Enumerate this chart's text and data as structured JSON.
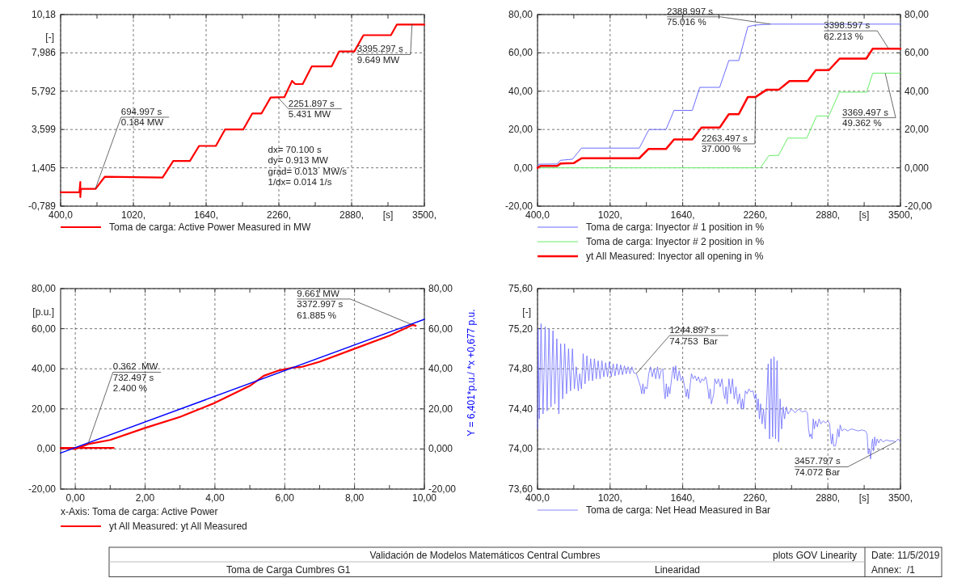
{
  "chart_data": [
    {
      "type": "line",
      "xlabel": "[s]",
      "ylabel": "[-]",
      "xlim": [
        400,
        3500
      ],
      "ylim": [
        -0.789,
        10.18
      ],
      "xticks": [
        {
          "value": 400,
          "label": "400,0"
        },
        {
          "value": 710,
          "label": null
        },
        {
          "value": 1020,
          "label": "1020,"
        },
        {
          "value": 1330,
          "label": null
        },
        {
          "value": 1640,
          "label": "1640,"
        },
        {
          "value": 1950,
          "label": null
        },
        {
          "value": 2260,
          "label": "2260,"
        },
        {
          "value": 2570,
          "label": null
        },
        {
          "value": 2880,
          "label": "2880,"
        },
        {
          "value": 3190,
          "label": null
        },
        {
          "value": 3500,
          "label": "3500,"
        }
      ],
      "yticks": [
        {
          "value": -0.789,
          "label": "-0,789"
        },
        {
          "value": 1.405,
          "label": "1,405"
        },
        {
          "value": 3.599,
          "label": "3,599"
        },
        {
          "value": 5.792,
          "label": "5,792"
        },
        {
          "value": 7.986,
          "label": "7,986"
        },
        {
          "value": 10.18,
          "label": "10,18"
        }
      ],
      "grid": true,
      "legend": "bottom",
      "series": [
        {
          "name": "Toma de carga: Active Power Measured in MW",
          "color": "#ff0000",
          "x": [
            400,
            560,
            568,
            568,
            572,
            580,
            698,
            776,
            1269,
            1360,
            1502,
            1580,
            1723,
            1801,
            1956,
            2034,
            2112,
            2190,
            2307,
            2372,
            2400,
            2463,
            2540,
            2709,
            2774,
            2903,
            2981,
            3215,
            3266,
            3500
          ],
          "values": [
            0.0,
            0.0,
            0.6,
            -0.27,
            0.15,
            0.2,
            0.2,
            0.89,
            0.85,
            1.8,
            1.8,
            2.66,
            2.66,
            3.6,
            3.6,
            4.52,
            4.52,
            5.43,
            5.45,
            6.38,
            6.2,
            6.2,
            7.21,
            7.21,
            8.07,
            8.07,
            9.0,
            9.0,
            9.61,
            9.61
          ]
        }
      ],
      "annotations": [
        {
          "text": "694.997 s\n0.184 MW",
          "x": 694.997,
          "y": 0.184
        },
        {
          "text": "2251.897 s\n5.431 MW",
          "x": 2251.897,
          "y": 5.431
        },
        {
          "text": "3395.297 s\n9.649 MW",
          "x": 3395.297,
          "y": 9.649
        },
        "dx= 70.100 s\ndy= 0.913 MW\ngrad= 0.013  MW/s\n1/dx= 0.014 1/s"
      ]
    },
    {
      "type": "line",
      "xlabel": "[s]",
      "xlim": [
        400,
        3500
      ],
      "ylim": [
        -20,
        80
      ],
      "y2lim": [
        -20,
        80
      ],
      "xticks": [
        {
          "value": 400,
          "label": "400,0"
        },
        {
          "value": 710,
          "label": null
        },
        {
          "value": 1020,
          "label": "1020,"
        },
        {
          "value": 1330,
          "label": null
        },
        {
          "value": 1640,
          "label": "1640,"
        },
        {
          "value": 1950,
          "label": null
        },
        {
          "value": 2260,
          "label": "2260,"
        },
        {
          "value": 2570,
          "label": null
        },
        {
          "value": 2880,
          "label": "2880,"
        },
        {
          "value": 3190,
          "label": null
        },
        {
          "value": 3500,
          "label": "3500,"
        }
      ],
      "yticks": [
        {
          "value": -20,
          "label": "-20,00"
        },
        {
          "value": 0,
          "label": "0,00"
        },
        {
          "value": 20,
          "label": "20,00"
        },
        {
          "value": 40,
          "label": "40,00"
        },
        {
          "value": 60,
          "label": "60,00"
        },
        {
          "value": 80,
          "label": "80,00"
        }
      ],
      "y2ticks": [
        {
          "value": -20,
          "label": "-20,00"
        },
        {
          "value": 0,
          "label": "0,000"
        },
        {
          "value": 20,
          "label": "20,00"
        },
        {
          "value": 40,
          "label": "40,00"
        },
        {
          "value": 60,
          "label": "60,00"
        },
        {
          "value": 80,
          "label": "80,00"
        }
      ],
      "grid": true,
      "legend": "bottom",
      "series": [
        {
          "name": "Toma de carga: Inyector # 1 position in %",
          "color": "#6b6bff",
          "x": [
            400,
            410,
            568,
            594,
            698,
            776,
            1269,
            1352,
            1497,
            1566,
            1722,
            1786,
            1956,
            2034,
            2119,
            2197,
            2260,
            2388.997,
            3500
          ],
          "values": [
            0,
            1.9,
            2,
            3.9,
            4.5,
            10.3,
            10.3,
            20,
            20,
            30,
            30,
            42,
            42,
            56,
            56,
            73.7,
            74.5,
            75.0,
            75
          ]
        },
        {
          "name": "Toma de carga: Inyector # 2 position in %",
          "color": "#66ee66",
          "x": [
            400,
            2304,
            2376,
            2459,
            2537,
            2700,
            2783,
            2887,
            2978,
            3211,
            3263,
            3369.497,
            3500
          ],
          "values": [
            0,
            0,
            6.4,
            6.5,
            15.5,
            15.5,
            27,
            27,
            39.5,
            39.5,
            49.4,
            49.4,
            49.4
          ]
        },
        {
          "name": "yt All Measured: Inyector all opening in %",
          "color": "#ff0000",
          "x": [
            400,
            426,
            568,
            599,
            711,
            776,
            1269,
            1347,
            1497,
            1566,
            1722,
            1801,
            1956,
            2034,
            2119,
            2197,
            2263.497,
            2358,
            2462,
            2552,
            2707,
            2777,
            2889,
            2980,
            3208,
            3264,
            3398.597,
            3500
          ],
          "values": [
            0,
            1,
            1,
            2.3,
            2.5,
            5,
            5,
            9.8,
            9.8,
            14.8,
            14.8,
            21,
            21,
            28,
            28,
            37,
            37,
            40.8,
            40.8,
            45.3,
            45.3,
            51,
            51,
            57,
            57,
            62.2,
            62.2,
            62.2
          ]
        }
      ],
      "annotations": [
        {
          "text": "2388.997 s\n75.016 %",
          "x": 2388.997,
          "y": 75.016
        },
        {
          "text": "3398.597 s\n62.213 %",
          "x": 3398.597,
          "y": 62.213
        },
        {
          "text": "2263.497 s\n37.000 %",
          "x": 2263.497,
          "y": 37
        },
        {
          "text": "3369.497 s\n49.362 %",
          "x": 3369.497,
          "y": 49.362
        }
      ]
    },
    {
      "type": "line",
      "xlabel": "x-Axis: Toma de carga: Active Power",
      "ylabel": "[p.u.]",
      "y2label": "Y = 6,401*p.u./ *x +0,677 p.u.",
      "xlim": [
        -0.42,
        10
      ],
      "ylim": [
        -20,
        80
      ],
      "y2lim": [
        -20,
        80
      ],
      "xticks": [
        {
          "value": 0,
          "label": "0,00"
        },
        {
          "value": 1,
          "label": null
        },
        {
          "value": 2,
          "label": "2,00"
        },
        {
          "value": 3,
          "label": null
        },
        {
          "value": 4,
          "label": "4,00"
        },
        {
          "value": 5,
          "label": null
        },
        {
          "value": 6,
          "label": "6,00"
        },
        {
          "value": 7,
          "label": null
        },
        {
          "value": 8,
          "label": "8,00"
        },
        {
          "value": 9,
          "label": null
        },
        {
          "value": 10,
          "label": "10,00"
        }
      ],
      "yticks": [
        {
          "value": -20,
          "label": "-20,00"
        },
        {
          "value": 0,
          "label": "0,00"
        },
        {
          "value": 20,
          "label": "20,00"
        },
        {
          "value": 40,
          "label": "40,00"
        },
        {
          "value": 60,
          "label": "60,00"
        },
        {
          "value": 80,
          "label": "80,00"
        }
      ],
      "y2ticks": [
        {
          "value": -20,
          "label": "-20,00"
        },
        {
          "value": 0,
          "label": "0,000"
        },
        {
          "value": 20,
          "label": "20,00"
        },
        {
          "value": 40,
          "label": "40,00"
        },
        {
          "value": 60,
          "label": "60,00"
        },
        {
          "value": 80,
          "label": "80,00"
        }
      ],
      "grid": true,
      "legend": "bottom",
      "series": [
        {
          "name": "yt All Measured: yt All Measured",
          "color": "#ff0000",
          "x": [
            1.1,
            -0.42,
            0,
            0.362,
            1,
            2,
            3,
            4,
            5,
            5.4,
            5.8,
            6.2,
            6.5,
            7,
            8,
            9,
            9.661,
            9.75
          ],
          "values": [
            0.5,
            0.5,
            0,
            2.4,
            4.5,
            10.5,
            16,
            23,
            31.5,
            36.5,
            39,
            40.5,
            41,
            43.5,
            50,
            56.5,
            61.9,
            61.5
          ]
        },
        {
          "type": "line",
          "color": "#0000ff",
          "x": [
            -0.42,
            10
          ],
          "values": [
            -2.0,
            64.7
          ]
        }
      ],
      "annotations": [
        {
          "text": "0.362  MW\n732.497 s\n2.400 %",
          "x": 0.362,
          "y": 2.4
        },
        {
          "text": "9.661 MW\n3372.997 s\n61.885 %",
          "x": 9.661,
          "y": 61.885
        }
      ]
    },
    {
      "type": "line",
      "xlabel": "[s]",
      "ylabel": "[-]",
      "xlim": [
        400,
        3500
      ],
      "ylim": [
        73.6,
        75.6
      ],
      "xticks": [
        {
          "value": 400,
          "label": "400,0"
        },
        {
          "value": 710,
          "label": null
        },
        {
          "value": 1020,
          "label": "1020,"
        },
        {
          "value": 1330,
          "label": null
        },
        {
          "value": 1640,
          "label": "1640,"
        },
        {
          "value": 1950,
          "label": null
        },
        {
          "value": 2260,
          "label": "2260,"
        },
        {
          "value": 2570,
          "label": null
        },
        {
          "value": 2880,
          "label": "2880,"
        },
        {
          "value": 3190,
          "label": null
        },
        {
          "value": 3500,
          "label": "3500,"
        }
      ],
      "yticks": [
        {
          "value": 73.6,
          "label": "73,60"
        },
        {
          "value": 74,
          "label": "74,00"
        },
        {
          "value": 74.4,
          "label": "74,40"
        },
        {
          "value": 74.8,
          "label": "74,80"
        },
        {
          "value": 75.2,
          "label": "75,20"
        },
        {
          "value": 75.6,
          "label": "75,60"
        }
      ],
      "grid": true,
      "legend": "bottom",
      "series": [
        {
          "name": "Toma de carga: Net Head Measured in Bar",
          "color": "#6b6bff",
          "x": [
            400,
            405,
            415,
            430,
            447,
            465,
            482,
            498,
            515,
            532,
            548,
            565,
            582,
            598,
            615,
            632,
            648,
            665,
            682,
            698,
            715,
            730,
            748,
            760,
            775,
            790,
            806,
            822,
            838,
            854,
            870,
            886,
            902,
            918,
            934,
            950,
            966,
            982,
            998,
            1014,
            1030,
            1046,
            1062,
            1078,
            1094,
            1110,
            1126,
            1142,
            1158,
            1174,
            1190,
            1206,
            1222,
            1244.897,
            1280,
            1290,
            1300,
            1310,
            1320,
            1335,
            1350,
            1365,
            1380,
            1395,
            1410,
            1425,
            1440,
            1455,
            1470,
            1480,
            1490,
            1500,
            1510,
            1520,
            1530,
            1550,
            1560,
            1570,
            1580,
            1595,
            1610,
            1625,
            1640,
            1660,
            1670,
            1680,
            1690,
            1700,
            1715,
            1730,
            1745,
            1760,
            1775,
            1790,
            1805,
            1820,
            1835,
            1845,
            1855,
            1865,
            1875,
            1885,
            1895,
            1905,
            1915,
            1930,
            1945,
            1960,
            1975,
            1990,
            2000,
            2010,
            2020,
            2035,
            2050,
            2065,
            2080,
            2095,
            2110,
            2125,
            2140,
            2150,
            2160,
            2175,
            2190,
            2205,
            2220,
            2240,
            2255,
            2265,
            2275,
            2285,
            2295,
            2305,
            2318,
            2330,
            2345,
            2360,
            2370,
            2382,
            2395,
            2408,
            2420,
            2433,
            2446,
            2459,
            2472,
            2485,
            2498,
            2510,
            2525,
            2540,
            2570,
            2600,
            2630,
            2660,
            2690,
            2705,
            2715,
            2725,
            2735,
            2745,
            2755,
            2765,
            2775,
            2790,
            2805,
            2820,
            2840,
            2860,
            2880,
            2895,
            2905,
            2912,
            2920,
            2930,
            2945,
            2955,
            2965,
            2975,
            2985,
            3000,
            3020,
            3050,
            3080,
            3110,
            3140,
            3170,
            3200,
            3215,
            3225,
            3235,
            3245,
            3255,
            3262,
            3270,
            3280,
            3290,
            3300,
            3315,
            3330,
            3350,
            3380,
            3410,
            3440,
            3457.797,
            3480,
            3500
          ],
          "values": [
            74.2,
            75.2,
            74.3,
            75.25,
            74.35,
            75.22,
            74.38,
            75.2,
            74.42,
            75.18,
            74.45,
            75.1,
            74.35,
            75.05,
            74.5,
            75.05,
            74.55,
            75.0,
            74.58,
            75.0,
            74.6,
            74.82,
            74.58,
            74.75,
            74.6,
            74.95,
            74.65,
            74.93,
            74.68,
            74.9,
            74.68,
            74.9,
            74.7,
            74.88,
            74.7,
            74.88,
            74.72,
            74.86,
            74.72,
            74.87,
            74.72,
            74.85,
            74.73,
            74.85,
            74.74,
            74.84,
            74.74,
            74.83,
            74.75,
            74.82,
            74.75,
            74.82,
            74.76,
            74.75,
            74.62,
            74.55,
            74.65,
            74.55,
            74.62,
            74.6,
            74.75,
            74.82,
            74.72,
            74.8,
            74.7,
            74.82,
            74.7,
            74.78,
            74.8,
            74.6,
            74.5,
            74.65,
            74.52,
            74.62,
            74.55,
            74.75,
            74.82,
            74.7,
            74.83,
            74.68,
            74.78,
            74.68,
            74.72,
            74.6,
            74.52,
            74.6,
            74.5,
            74.6,
            74.75,
            74.7,
            74.73,
            74.68,
            74.72,
            74.66,
            74.7,
            74.68,
            74.72,
            74.68,
            74.6,
            74.5,
            74.6,
            74.45,
            74.5,
            74.55,
            74.7,
            74.65,
            74.7,
            74.62,
            74.7,
            74.55,
            74.5,
            74.62,
            74.45,
            74.7,
            74.55,
            74.7,
            74.5,
            74.62,
            74.45,
            74.55,
            74.4,
            74.5,
            74.4,
            74.58,
            74.55,
            74.6,
            74.57,
            74.58,
            74.5,
            74.55,
            74.38,
            74.5,
            74.3,
            74.45,
            74.25,
            74.4,
            74.2,
            74.55,
            74.85,
            74.1,
            74.9,
            74.12,
            74.92,
            74.1,
            74.88,
            74.07,
            74.5,
            74.2,
            74.42,
            74.3,
            74.42,
            74.35,
            74.4,
            74.36,
            74.4,
            74.37,
            74.38,
            74.36,
            74.2,
            74.12,
            74.15,
            74.1,
            74.3,
            74.2,
            74.28,
            74.22,
            74.3,
            74.25,
            74.28,
            74.26,
            74.28,
            74.25,
            74.1,
            74.05,
            74.15,
            74.03,
            74.03,
            74.1,
            74.2,
            74.12,
            74.24,
            74.18,
            74.2,
            74.18,
            74.2,
            74.19,
            74.18,
            74.19,
            74.18,
            74.15,
            73.95,
            74.0,
            73.9,
            74.05,
            74.1,
            73.98,
            74.12,
            74.03,
            74.1,
            74.06,
            74.1,
            74.07,
            74.09,
            74.08,
            74.08,
            74.07,
            74.1,
            74.07
          ]
        }
      ],
      "annotations": [
        {
          "text": "1244.897 s\n74.753  Bar",
          "x": 1244.897,
          "y": 74.753
        },
        {
          "text": "3457.797 s\n74.072 Bar",
          "x": 3457.797,
          "y": 74.072
        }
      ]
    },
    {
      "type": "other",
      "title": "Validación de Modelos Matemáticos Central Cumbres",
      "annotations": [
        "Toma de Carga Cumbres G1",
        "plots GOV Linearity",
        "Linearidad",
        "Date: 11/5/2019",
        "Annex:  /1"
      ]
    }
  ]
}
